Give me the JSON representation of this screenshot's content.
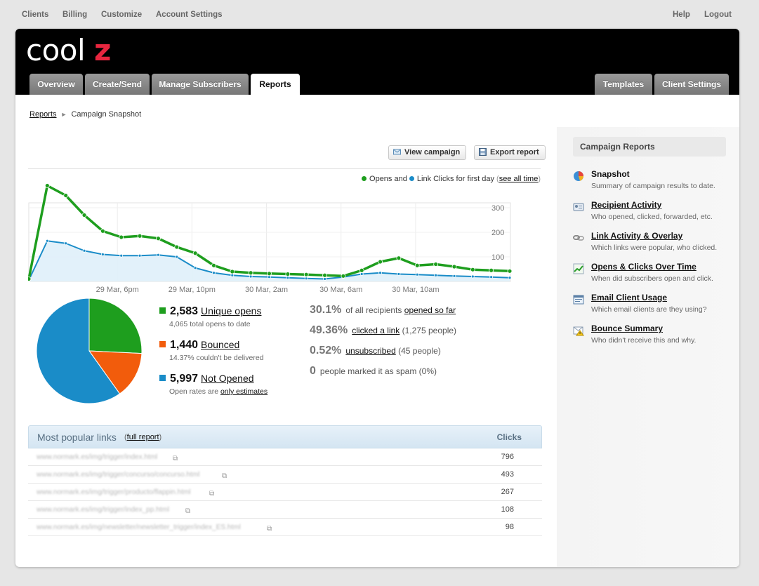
{
  "topnav": {
    "left": [
      "Clients",
      "Billing",
      "Customize",
      "Account Settings"
    ],
    "right": [
      "Help",
      "Logout"
    ]
  },
  "brand": {
    "text": "cool",
    "accent": "z",
    "accent_color": "#e8263f"
  },
  "tabs": {
    "main": [
      "Overview",
      "Create/Send",
      "Manage Subscribers",
      "Reports"
    ],
    "active": "Reports",
    "right": [
      "Templates",
      "Client Settings"
    ]
  },
  "breadcrumb": {
    "root": "Reports",
    "current": "Campaign Snapshot"
  },
  "actions": {
    "view_campaign": "View campaign",
    "export_report": "Export report"
  },
  "legend": {
    "opens": "Opens",
    "and": "and",
    "clicks": "Link Clicks for first day",
    "see_all_time": "see all time"
  },
  "chart_data": {
    "type": "area",
    "x_ticks": [
      "29 Mar, 6pm",
      "29 Mar, 10pm",
      "30 Mar, 2am",
      "30 Mar, 6am",
      "30 Mar, 10am"
    ],
    "y_ticks": [
      100,
      200,
      300
    ],
    "ylim": [
      0,
      400
    ],
    "series": [
      {
        "name": "Opens",
        "color": "#1e9e1e",
        "values": [
          10,
          390,
          350,
          270,
          205,
          180,
          185,
          175,
          140,
          115,
          65,
          40,
          35,
          32,
          30,
          28,
          25,
          22,
          45,
          80,
          95,
          65,
          70,
          60,
          48,
          45,
          42
        ]
      },
      {
        "name": "Link Clicks",
        "color": "#1a8cc8",
        "values": [
          5,
          165,
          155,
          125,
          110,
          105,
          105,
          108,
          100,
          55,
          35,
          25,
          20,
          18,
          15,
          12,
          10,
          18,
          30,
          35,
          30,
          28,
          25,
          22,
          20,
          18,
          15
        ]
      }
    ]
  },
  "pie": {
    "slices": [
      {
        "name": "Unique opens",
        "value": 2583,
        "color": "#1e9e1e"
      },
      {
        "name": "Bounced",
        "value": 1440,
        "color": "#f25c0c"
      },
      {
        "name": "Not Opened",
        "value": 5997,
        "color": "#1a8cc8"
      }
    ]
  },
  "stats": {
    "unique": {
      "num": "2,583",
      "label": "Unique opens",
      "sub": "4,065 total opens to date"
    },
    "bounced": {
      "num": "1,440",
      "label": "Bounced",
      "sub": "14.37% couldn't be delivered"
    },
    "notopened": {
      "num": "5,997",
      "label": "Not Opened",
      "sub_pre": "Open rates are",
      "sub_link": "only estimates"
    }
  },
  "rates": {
    "opened": {
      "pct": "30.1%",
      "pre": "of all recipients",
      "link": "opened so far"
    },
    "clicked": {
      "pct": "49.36%",
      "link": "clicked a link",
      "post": "(1,275 people)"
    },
    "unsub": {
      "pct": "0.52%",
      "link": "unsubscribed",
      "post": "(45 people)"
    },
    "spam": {
      "pct": "0",
      "post": "people marked it as spam (0%)"
    }
  },
  "links": {
    "title": "Most popular links",
    "full_report": "full report",
    "clicks_header": "Clicks",
    "rows": [
      {
        "url": "www.normark.es/img/trigger/index.html",
        "clicks": "796"
      },
      {
        "url": "www.normark.es/img/trigger/concurso/concurso.html",
        "clicks": "493"
      },
      {
        "url": "www.normark.es/img/trigger/producto/flappin.html",
        "clicks": "267"
      },
      {
        "url": "www.normark.es/img/trigger/index_pp.html",
        "clicks": "108"
      },
      {
        "url": "www.normark.es/img/newsletter/newsletter_trigger/index_ES.html",
        "clicks": "98"
      }
    ]
  },
  "sidebar": {
    "title": "Campaign Reports",
    "items": [
      {
        "title": "Snapshot",
        "desc": "Summary of campaign results to date.",
        "icon": "pie-chart-icon"
      },
      {
        "title": "Recipient Activity",
        "desc": "Who opened, clicked, forwarded, etc.",
        "icon": "id-card-icon"
      },
      {
        "title": "Link Activity & Overlay",
        "desc": "Which links were popular, who clicked.",
        "icon": "link-icon"
      },
      {
        "title": "Opens & Clicks Over Time",
        "desc": "When did subscribers open and click.",
        "icon": "trend-chart-icon"
      },
      {
        "title": "Email Client Usage",
        "desc": "Which email clients are they using?",
        "icon": "email-client-icon"
      },
      {
        "title": "Bounce Summary",
        "desc": "Who didn't receive this and why.",
        "icon": "warning-icon"
      }
    ]
  }
}
